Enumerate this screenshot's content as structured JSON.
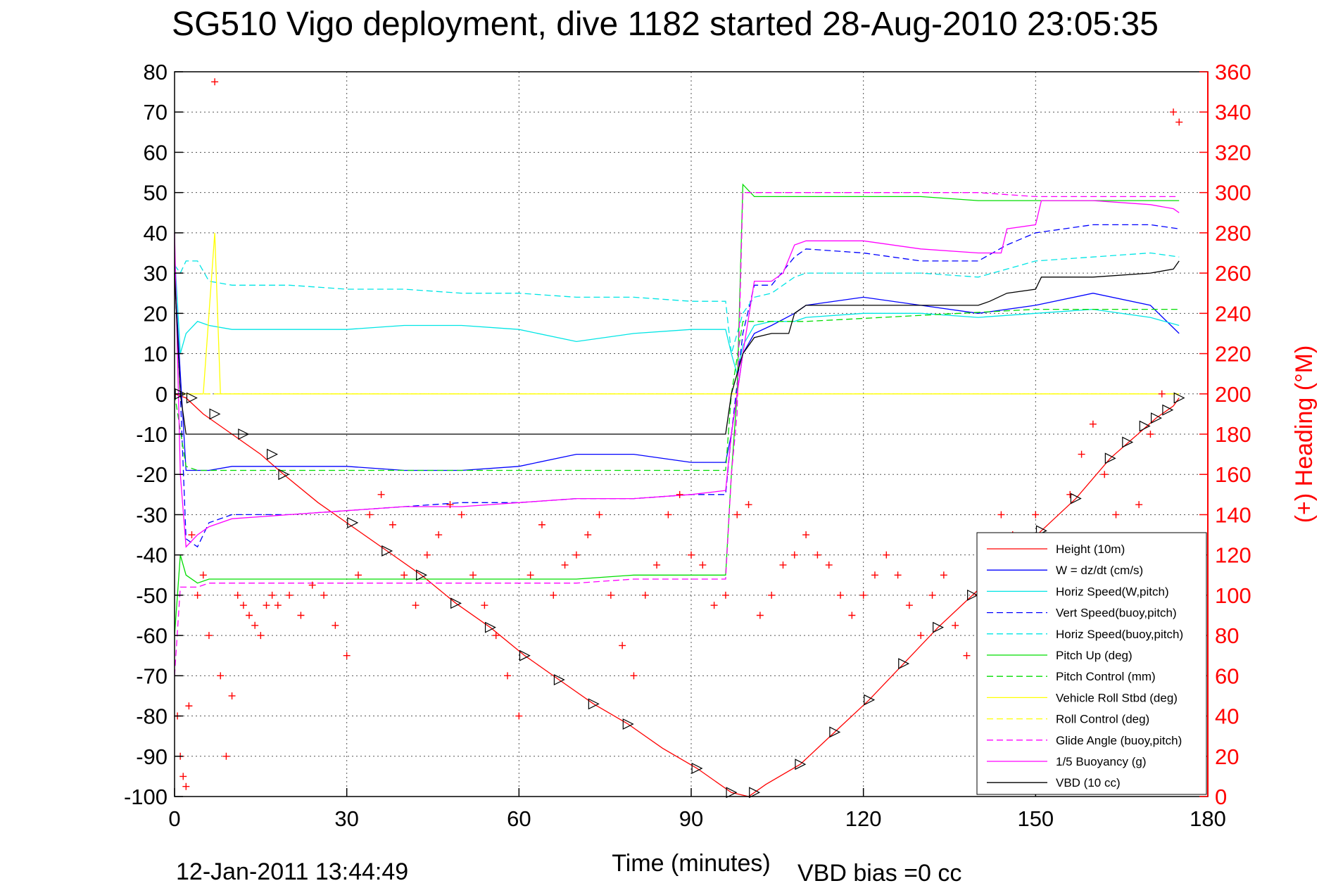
{
  "chart_data": {
    "type": "line",
    "title": "SG510 Vigo deployment, dive 1182 started 28-Aug-2010 23:05:35",
    "xlabel": "Time (minutes)",
    "ylabel_right": "(+) Heading (°M)",
    "xlim": [
      0,
      180
    ],
    "ylim_left": [
      -100,
      80
    ],
    "ylim_right": [
      0,
      360
    ],
    "xticks": [
      0,
      30,
      60,
      90,
      120,
      150,
      180
    ],
    "yticks_left": [
      80,
      70,
      60,
      50,
      40,
      30,
      20,
      10,
      0,
      -10,
      -20,
      -30,
      -40,
      -50,
      -60,
      -70,
      -80,
      -90,
      -100
    ],
    "yticks_right": [
      360,
      340,
      320,
      300,
      280,
      260,
      240,
      220,
      200,
      180,
      160,
      140,
      120,
      100,
      80,
      60,
      40,
      20,
      0
    ],
    "grid": true,
    "legend_position": "bottom-right",
    "footer_timestamp": "12-Jan-2011 13:44:49",
    "footer_note": "VBD bias =0 cc",
    "series": [
      {
        "name": "Height (10m)",
        "color": "#ff0000",
        "style": "solid",
        "x": [
          0,
          2,
          5,
          10,
          15,
          19,
          25,
          31,
          37,
          43,
          49,
          55,
          61,
          67,
          73,
          79,
          85,
          91,
          97,
          100,
          103,
          109,
          115,
          121,
          127,
          133,
          139,
          145,
          151,
          157,
          163,
          167,
          171,
          174,
          175
        ],
        "y": [
          0,
          -1,
          -5,
          -10,
          -15,
          -20,
          -27,
          -33,
          -39,
          -45,
          -52,
          -58,
          -65,
          -71,
          -77,
          -82,
          -88,
          -93,
          -99,
          -100,
          -97,
          -92,
          -84,
          -76,
          -67,
          -58,
          -50,
          -42,
          -34,
          -26,
          -16,
          -11,
          -6,
          -3,
          -1
        ]
      },
      {
        "name": "W = dz/dt (cm/s)",
        "color": "#0000ff",
        "style": "solid",
        "x": [
          0,
          1,
          2,
          4,
          6,
          10,
          20,
          30,
          40,
          50,
          60,
          70,
          80,
          90,
          96,
          97,
          99,
          101,
          104,
          108,
          110,
          120,
          130,
          140,
          150,
          160,
          170,
          175
        ],
        "y": [
          30,
          5,
          -19,
          -19,
          -19,
          -18,
          -18,
          -18,
          -19,
          -19,
          -18,
          -15,
          -15,
          -17,
          -17,
          -10,
          10,
          15,
          17,
          20,
          22,
          24,
          22,
          20,
          22,
          25,
          22,
          15
        ]
      },
      {
        "name": "Horiz Speed(W,pitch)",
        "color": "#00e5e5",
        "style": "solid",
        "x": [
          0,
          1,
          2,
          4,
          6,
          10,
          20,
          30,
          40,
          50,
          60,
          70,
          80,
          90,
          96,
          97,
          98,
          99,
          101,
          104,
          108,
          110,
          120,
          130,
          140,
          150,
          160,
          170,
          175
        ],
        "y": [
          35,
          10,
          15,
          18,
          17,
          16,
          16,
          16,
          17,
          17,
          16,
          13,
          15,
          16,
          16,
          10,
          5,
          12,
          17,
          18,
          18,
          19,
          20,
          20,
          19,
          20,
          21,
          19,
          17
        ]
      },
      {
        "name": "Vert Speed(buoy,pitch)",
        "color": "#0000ff",
        "style": "dashed",
        "x": [
          0,
          1,
          2,
          4,
          6,
          10,
          20,
          30,
          40,
          50,
          60,
          70,
          80,
          90,
          96,
          97,
          99,
          101,
          104,
          108,
          110,
          120,
          130,
          140,
          145,
          150,
          160,
          170,
          175
        ],
        "y": [
          30,
          0,
          -36,
          -38,
          -32,
          -30,
          -30,
          -29,
          -28,
          -27,
          -27,
          -26,
          -26,
          -25,
          -25,
          -10,
          15,
          27,
          27,
          34,
          36,
          35,
          33,
          33,
          37,
          40,
          42,
          42,
          41
        ]
      },
      {
        "name": "Horiz Speed(buoy,pitch)",
        "color": "#00e5e5",
        "style": "dashed",
        "x": [
          0,
          1,
          2,
          4,
          6,
          10,
          20,
          30,
          40,
          50,
          60,
          70,
          80,
          90,
          96,
          97,
          99,
          101,
          104,
          108,
          110,
          120,
          130,
          140,
          145,
          150,
          160,
          170,
          175
        ],
        "y": [
          32,
          30,
          33,
          33,
          28,
          27,
          27,
          26,
          26,
          25,
          25,
          24,
          24,
          23,
          23,
          10,
          20,
          24,
          25,
          29,
          30,
          30,
          30,
          29,
          31,
          33,
          34,
          35,
          34
        ]
      },
      {
        "name": "Pitch Up (deg)",
        "color": "#00dd00",
        "style": "solid",
        "x": [
          0,
          1,
          2,
          4,
          6,
          10,
          20,
          30,
          40,
          50,
          60,
          70,
          80,
          90,
          96,
          97,
          98,
          99,
          101,
          104,
          110,
          120,
          130,
          140,
          150,
          160,
          170,
          175
        ],
        "y": [
          -60,
          -40,
          -45,
          -47,
          -46,
          -46,
          -46,
          -46,
          -46,
          -46,
          -46,
          -46,
          -45,
          -45,
          -45,
          -20,
          0,
          52,
          49,
          49,
          49,
          49,
          49,
          48,
          48,
          48,
          48,
          48
        ]
      },
      {
        "name": "Pitch Control (mm)",
        "color": "#00dd00",
        "style": "dashed",
        "x": [
          0,
          2,
          4,
          96,
          97,
          99,
          101,
          110,
          150,
          175
        ],
        "y": [
          0,
          -18,
          -19,
          -19,
          0,
          18,
          18,
          18,
          21,
          21
        ]
      },
      {
        "name": "Vehicle Roll Stbd (deg)",
        "color": "#ffff00",
        "style": "solid",
        "x": [
          0,
          5,
          7,
          8,
          9,
          20,
          30,
          40,
          50,
          60,
          70,
          80,
          90,
          99,
          100,
          110,
          120,
          130,
          140,
          150,
          160,
          170,
          175
        ],
        "y": [
          0,
          0,
          40,
          0,
          0,
          0,
          0,
          0,
          0,
          0,
          0,
          0,
          0,
          0,
          0,
          0,
          0,
          0,
          0,
          0,
          0,
          0,
          0
        ]
      },
      {
        "name": "Roll Control (deg)",
        "color": "#ffff00",
        "style": "dashed",
        "x": [
          0,
          20,
          40,
          60,
          80,
          100,
          120,
          140,
          160,
          175
        ],
        "y": [
          0,
          0,
          0,
          0,
          0,
          0,
          0,
          0,
          0,
          0
        ]
      },
      {
        "name": "Glide Angle (buoy,pitch)",
        "color": "#ff00ff",
        "style": "dashed",
        "x": [
          0,
          1,
          2,
          4,
          6,
          10,
          20,
          30,
          40,
          50,
          60,
          70,
          80,
          90,
          96,
          97,
          98,
          99,
          101,
          104,
          110,
          120,
          130,
          140,
          150,
          160,
          170,
          175
        ],
        "y": [
          -70,
          -48,
          -48,
          -48,
          -47,
          -47,
          -47,
          -47,
          -47,
          -47,
          -47,
          -47,
          -46,
          -46,
          -46,
          -20,
          -5,
          50,
          50,
          50,
          50,
          50,
          50,
          50,
          49,
          49,
          49,
          49
        ]
      },
      {
        "name": "1/5 Buoyancy (g)",
        "color": "#ff00ff",
        "style": "solid",
        "x": [
          0,
          1,
          2,
          4,
          6,
          10,
          20,
          30,
          40,
          50,
          60,
          70,
          80,
          90,
          96,
          97,
          99,
          101,
          104,
          106,
          108,
          110,
          120,
          130,
          140,
          144,
          145,
          150,
          151,
          160,
          170,
          174,
          175
        ],
        "y": [
          40,
          -20,
          -38,
          -35,
          -33,
          -31,
          -30,
          -29,
          -28,
          -28,
          -27,
          -26,
          -26,
          -25,
          -24,
          -10,
          10,
          28,
          28,
          30,
          37,
          38,
          38,
          36,
          35,
          35,
          41,
          42,
          48,
          48,
          47,
          46,
          45
        ]
      },
      {
        "name": "VBD (10 cc)",
        "color": "#000000",
        "style": "solid",
        "x": [
          0,
          1,
          2,
          96,
          97,
          99,
          101,
          104,
          107,
          108,
          110,
          120,
          130,
          140,
          142,
          145,
          150,
          151,
          160,
          170,
          174,
          175
        ],
        "y": [
          30,
          0,
          -10,
          -10,
          0,
          10,
          14,
          15,
          15,
          20,
          22,
          22,
          22,
          22,
          23,
          25,
          26,
          29,
          29,
          30,
          31,
          33
        ]
      }
    ],
    "heading_points": {
      "name": "(+) Heading (°M)",
      "color": "#ff0000",
      "axis": "right",
      "x": [
        0.5,
        1,
        1.5,
        2,
        2.5,
        3,
        4,
        5,
        6,
        7,
        8,
        9,
        10,
        11,
        12,
        13,
        14,
        15,
        16,
        17,
        18,
        20,
        22,
        24,
        26,
        28,
        30,
        32,
        34,
        36,
        38,
        40,
        42,
        44,
        46,
        48,
        50,
        52,
        54,
        56,
        58,
        60,
        62,
        64,
        66,
        68,
        70,
        72,
        74,
        76,
        78,
        80,
        82,
        84,
        86,
        88,
        90,
        92,
        94,
        96,
        98,
        100,
        102,
        104,
        106,
        108,
        110,
        112,
        114,
        116,
        118,
        120,
        122,
        124,
        126,
        128,
        130,
        132,
        134,
        136,
        138,
        140,
        142,
        144,
        146,
        148,
        150,
        152,
        154,
        156,
        158,
        160,
        162,
        164,
        166,
        168,
        170,
        172,
        174,
        175
      ],
      "y": [
        40,
        20,
        10,
        5,
        45,
        130,
        100,
        110,
        80,
        355,
        60,
        20,
        50,
        100,
        95,
        90,
        85,
        80,
        95,
        100,
        95,
        100,
        90,
        105,
        100,
        85,
        70,
        110,
        140,
        150,
        135,
        110,
        95,
        120,
        130,
        145,
        140,
        110,
        95,
        80,
        60,
        40,
        110,
        135,
        100,
        115,
        120,
        130,
        140,
        100,
        75,
        60,
        100,
        115,
        140,
        150,
        120,
        115,
        95,
        100,
        140,
        145,
        90,
        100,
        115,
        120,
        130,
        120,
        115,
        100,
        90,
        100,
        110,
        120,
        110,
        95,
        80,
        100,
        110,
        85,
        70,
        100,
        120,
        140,
        130,
        120,
        140,
        115,
        110,
        150,
        170,
        185,
        160,
        140,
        115,
        145,
        180,
        200,
        340,
        335
      ]
    },
    "markers": {
      "symbol": "triangle",
      "color": "#000000",
      "x": [
        1,
        3,
        7,
        12,
        17,
        19,
        31,
        37,
        43,
        49,
        55,
        61,
        67,
        73,
        79,
        91,
        97,
        101,
        109,
        115,
        121,
        127,
        133,
        139,
        145,
        151,
        157,
        163,
        166,
        169,
        171,
        173,
        175
      ],
      "y": [
        0,
        -1,
        -5,
        -10,
        -15,
        -20,
        -32,
        -39,
        -45,
        -52,
        -58,
        -65,
        -71,
        -77,
        -82,
        -93,
        -99,
        -99,
        -92,
        -84,
        -76,
        -67,
        -58,
        -50,
        -42,
        -34,
        -26,
        -16,
        -12,
        -8,
        -6,
        -4,
        -1
      ]
    }
  }
}
